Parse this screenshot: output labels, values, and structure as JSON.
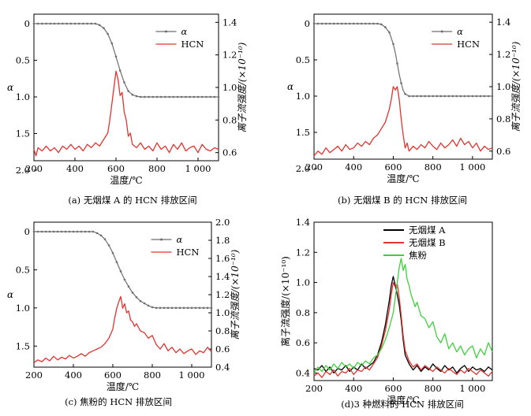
{
  "colors": {
    "alpha": "#6e6e6e",
    "hcn": "#e0342f",
    "coalA": "#000000",
    "coalB": "#e0342f",
    "coke": "#3ed23a"
  },
  "chart_data": [
    {
      "id": "a",
      "type": "line",
      "caption": "(a) 无烟煤 A 的 HCN 排放区间",
      "xlabel": "温度/℃",
      "ylabel_left": "α",
      "ylabel_right": "离子流强度/(×10⁻¹⁰)",
      "xlim": [
        200,
        1100
      ],
      "xticks": [
        "200",
        "400",
        "600",
        "800",
        "1 000"
      ],
      "xtick_values": [
        200,
        400,
        600,
        800,
        1000
      ],
      "ylim_left": [
        2.0,
        0
      ],
      "yticks_left": [
        "0",
        "0.5",
        "1.0",
        "1.5",
        "2.0"
      ],
      "ytick_left_values": [
        0,
        0.5,
        1.0,
        1.5,
        2.0
      ],
      "ylim_right": [
        0.55,
        1.45
      ],
      "yticks_right": [
        "0.6",
        "0.8",
        "1.0",
        "1.2",
        "1.4"
      ],
      "ytick_right_values": [
        0.6,
        0.8,
        1.0,
        1.2,
        1.4
      ],
      "legend": [
        "α",
        "HCN"
      ],
      "series": [
        {
          "name": "α",
          "axis": "left",
          "marker": true,
          "x": [
            200,
            500,
            520,
            540,
            560,
            580,
            600,
            620,
            640,
            660,
            680,
            700,
            720,
            760,
            800,
            900,
            1000,
            1100
          ],
          "y": [
            0,
            0,
            0.02,
            0.06,
            0.14,
            0.27,
            0.45,
            0.64,
            0.8,
            0.92,
            0.97,
            0.99,
            1.0,
            1.0,
            1.0,
            1.0,
            1.0,
            1.0
          ]
        },
        {
          "name": "HCN",
          "axis": "right",
          "x": [
            200,
            210,
            220,
            240,
            260,
            280,
            300,
            320,
            340,
            360,
            380,
            400,
            420,
            440,
            460,
            480,
            500,
            520,
            540,
            560,
            570,
            580,
            590,
            600,
            610,
            620,
            630,
            640,
            650,
            660,
            670,
            680,
            700,
            720,
            740,
            760,
            780,
            800,
            820,
            840,
            860,
            880,
            900,
            920,
            940,
            960,
            980,
            1000,
            1020,
            1040,
            1060,
            1080,
            1100
          ],
          "y": [
            0.62,
            0.58,
            0.63,
            0.61,
            0.64,
            0.61,
            0.63,
            0.6,
            0.64,
            0.62,
            0.65,
            0.62,
            0.64,
            0.61,
            0.65,
            0.63,
            0.66,
            0.64,
            0.68,
            0.72,
            0.8,
            0.9,
            1.0,
            1.1,
            1.05,
            0.95,
            0.97,
            0.85,
            0.8,
            0.7,
            0.72,
            0.65,
            0.63,
            0.66,
            0.62,
            0.64,
            0.61,
            0.66,
            0.62,
            0.64,
            0.6,
            0.65,
            0.62,
            0.66,
            0.61,
            0.63,
            0.64,
            0.6,
            0.65,
            0.62,
            0.61,
            0.63,
            0.62
          ]
        }
      ]
    },
    {
      "id": "b",
      "type": "line",
      "caption": "(b) 无烟煤 B 的 HCN 排放区间",
      "xlabel": "温度/℃",
      "ylabel_left": "α",
      "ylabel_right": "离子流强度/(×10⁻¹⁰)",
      "xlim": [
        200,
        1100
      ],
      "xticks": [
        "200",
        "400",
        "600",
        "800",
        "1 000"
      ],
      "xtick_values": [
        200,
        400,
        600,
        800,
        1000
      ],
      "ylim_left": [
        2.0,
        0
      ],
      "yticks_left": [
        "0",
        "0.5",
        "1.0",
        "1.5",
        "2.0"
      ],
      "ytick_left_values": [
        0,
        0.5,
        1.0,
        1.5,
        2.0
      ],
      "ylim_right": [
        0.55,
        1.45
      ],
      "yticks_right": [
        "0.6",
        "0.8",
        "1.0",
        "1.2",
        "1.4"
      ],
      "ytick_right_values": [
        0.6,
        0.8,
        1.0,
        1.2,
        1.4
      ],
      "legend": [
        "α",
        "HCN"
      ],
      "series": [
        {
          "name": "α",
          "axis": "left",
          "marker": true,
          "x": [
            200,
            520,
            540,
            560,
            580,
            600,
            610,
            620,
            630,
            640,
            650,
            660,
            680,
            700,
            760,
            800,
            900,
            1000,
            1100
          ],
          "y": [
            0,
            0,
            0.01,
            0.05,
            0.12,
            0.28,
            0.4,
            0.55,
            0.7,
            0.82,
            0.92,
            0.97,
            1.0,
            1.0,
            1.0,
            1.0,
            1.0,
            1.0,
            1.0
          ]
        },
        {
          "name": "HCN",
          "axis": "right",
          "x": [
            200,
            220,
            240,
            260,
            280,
            300,
            320,
            340,
            360,
            380,
            400,
            420,
            440,
            460,
            480,
            500,
            520,
            540,
            560,
            580,
            590,
            600,
            610,
            620,
            630,
            640,
            650,
            660,
            670,
            680,
            700,
            720,
            740,
            760,
            780,
            800,
            820,
            840,
            860,
            880,
            900,
            920,
            940,
            960,
            980,
            1000,
            1020,
            1040,
            1060,
            1080,
            1100
          ],
          "y": [
            0.57,
            0.6,
            0.58,
            0.62,
            0.59,
            0.61,
            0.63,
            0.6,
            0.64,
            0.61,
            0.62,
            0.65,
            0.63,
            0.66,
            0.64,
            0.68,
            0.7,
            0.74,
            0.78,
            0.86,
            0.92,
            1.0,
            0.98,
            1.0,
            0.92,
            0.8,
            0.7,
            0.62,
            0.65,
            0.6,
            0.63,
            0.61,
            0.64,
            0.62,
            0.66,
            0.63,
            0.61,
            0.65,
            0.62,
            0.64,
            0.67,
            0.63,
            0.68,
            0.64,
            0.66,
            0.62,
            0.65,
            0.6,
            0.63,
            0.61,
            0.62
          ]
        }
      ]
    },
    {
      "id": "c",
      "type": "line",
      "caption": "(c) 焦粉的 HCN 排放区间",
      "xlabel": "温度/℃",
      "ylabel_left": "α",
      "ylabel_right": "离子流强度/(×10⁻¹⁰)",
      "xlim": [
        200,
        1100
      ],
      "xticks": [
        "200",
        "400",
        "600",
        "800",
        "1 000"
      ],
      "xtick_values": [
        200,
        400,
        600,
        800,
        1000
      ],
      "ylim_left": [
        1.9,
        0
      ],
      "yticks_left": [
        "0",
        "0.5",
        "1.0",
        "1.5"
      ],
      "ytick_left_values": [
        0,
        0.5,
        1.0,
        1.5
      ],
      "ylim_right": [
        0.4,
        2.0
      ],
      "yticks_right": [
        "0.4",
        "0.6",
        "0.8",
        "1.0",
        "1.2",
        "1.4",
        "1.6",
        "1.8",
        "2.0"
      ],
      "ytick_right_values": [
        0.4,
        0.6,
        0.8,
        1.0,
        1.2,
        1.4,
        1.6,
        1.8,
        2.0
      ],
      "legend": [
        "α",
        "HCN"
      ],
      "series": [
        {
          "name": "α",
          "axis": "left",
          "marker": true,
          "x": [
            200,
            500,
            520,
            540,
            560,
            580,
            600,
            620,
            640,
            660,
            680,
            700,
            720,
            740,
            760,
            780,
            800,
            820,
            840,
            860,
            900,
            1000,
            1100
          ],
          "y": [
            0,
            0,
            0.02,
            0.05,
            0.1,
            0.18,
            0.28,
            0.4,
            0.52,
            0.63,
            0.72,
            0.8,
            0.86,
            0.91,
            0.94,
            0.97,
            0.99,
            1.0,
            1.0,
            1.0,
            1.0,
            1.0,
            1.0
          ]
        },
        {
          "name": "HCN",
          "axis": "right",
          "x": [
            200,
            220,
            240,
            260,
            280,
            300,
            320,
            340,
            360,
            380,
            400,
            420,
            440,
            460,
            480,
            500,
            520,
            540,
            560,
            580,
            600,
            610,
            620,
            630,
            640,
            650,
            660,
            670,
            680,
            690,
            700,
            710,
            720,
            740,
            760,
            780,
            800,
            820,
            840,
            860,
            880,
            900,
            920,
            940,
            960,
            980,
            1000,
            1020,
            1040,
            1060,
            1080,
            1100
          ],
          "y": [
            0.45,
            0.48,
            0.46,
            0.5,
            0.47,
            0.52,
            0.48,
            0.51,
            0.49,
            0.53,
            0.5,
            0.52,
            0.55,
            0.52,
            0.56,
            0.58,
            0.6,
            0.62,
            0.66,
            0.72,
            0.82,
            0.95,
            1.05,
            1.12,
            1.18,
            1.05,
            1.1,
            1.0,
            1.02,
            0.92,
            0.9,
            0.85,
            0.88,
            0.8,
            0.78,
            0.72,
            0.75,
            0.65,
            0.6,
            0.66,
            0.58,
            0.62,
            0.56,
            0.6,
            0.55,
            0.58,
            0.6,
            0.54,
            0.58,
            0.56,
            0.62,
            0.57
          ]
        }
      ]
    },
    {
      "id": "d",
      "type": "line",
      "caption": "(d)3 种燃料的 HCN 排放区间",
      "xlabel": "温度/℃",
      "ylabel_left": "离子流强度/(×10⁻¹⁰)",
      "xlim": [
        200,
        1100
      ],
      "xticks": [
        "200",
        "400",
        "600",
        "800",
        "1 000"
      ],
      "xtick_values": [
        200,
        400,
        600,
        800,
        1000
      ],
      "ylim_left": [
        0.35,
        1.4
      ],
      "yticks_left": [
        "0.4",
        "0.6",
        "0.8",
        "1.0",
        "1.2",
        "1.4"
      ],
      "ytick_left_values": [
        0.4,
        0.6,
        0.8,
        1.0,
        1.2,
        1.4
      ],
      "legend": [
        "无烟煤 A",
        "无烟煤 B",
        "焦粉"
      ],
      "series": [
        {
          "name": "无烟煤 A",
          "axis": "left",
          "x": [
            200,
            220,
            240,
            260,
            280,
            300,
            320,
            340,
            360,
            380,
            400,
            420,
            440,
            460,
            480,
            500,
            520,
            540,
            560,
            580,
            590,
            600,
            610,
            620,
            630,
            640,
            650,
            660,
            680,
            700,
            720,
            740,
            760,
            780,
            800,
            820,
            840,
            860,
            880,
            900,
            920,
            940,
            960,
            980,
            1000,
            1020,
            1040,
            1060,
            1080,
            1100
          ],
          "y": [
            0.43,
            0.42,
            0.45,
            0.41,
            0.44,
            0.4,
            0.43,
            0.42,
            0.45,
            0.41,
            0.44,
            0.42,
            0.46,
            0.43,
            0.45,
            0.47,
            0.52,
            0.6,
            0.72,
            0.88,
            0.98,
            1.04,
            0.98,
            0.92,
            0.85,
            0.75,
            0.62,
            0.52,
            0.46,
            0.42,
            0.45,
            0.41,
            0.44,
            0.42,
            0.46,
            0.43,
            0.41,
            0.45,
            0.42,
            0.44,
            0.4,
            0.43,
            0.45,
            0.41,
            0.44,
            0.42,
            0.43,
            0.41,
            0.44,
            0.42
          ]
        },
        {
          "name": "无烟煤 B",
          "axis": "left",
          "x": [
            200,
            220,
            240,
            260,
            280,
            300,
            320,
            340,
            360,
            380,
            400,
            420,
            440,
            460,
            480,
            500,
            520,
            540,
            560,
            580,
            590,
            600,
            610,
            620,
            630,
            640,
            650,
            660,
            680,
            700,
            720,
            740,
            760,
            780,
            800,
            820,
            840,
            860,
            880,
            900,
            920,
            940,
            960,
            980,
            1000,
            1020,
            1040,
            1060,
            1080,
            1100
          ],
          "y": [
            0.38,
            0.4,
            0.37,
            0.41,
            0.39,
            0.42,
            0.38,
            0.41,
            0.4,
            0.43,
            0.39,
            0.42,
            0.41,
            0.44,
            0.42,
            0.46,
            0.5,
            0.58,
            0.68,
            0.82,
            0.92,
            1.0,
            0.97,
            0.99,
            0.9,
            0.78,
            0.65,
            0.55,
            0.48,
            0.44,
            0.46,
            0.42,
            0.45,
            0.43,
            0.41,
            0.44,
            0.42,
            0.4,
            0.43,
            0.41,
            0.39,
            0.42,
            0.4,
            0.43,
            0.41,
            0.39,
            0.42,
            0.4,
            0.38,
            0.41
          ]
        },
        {
          "name": "焦粉",
          "axis": "left",
          "x": [
            200,
            220,
            240,
            260,
            280,
            300,
            320,
            340,
            360,
            380,
            400,
            420,
            440,
            460,
            480,
            500,
            520,
            540,
            560,
            580,
            600,
            610,
            620,
            630,
            640,
            650,
            660,
            670,
            680,
            690,
            700,
            710,
            720,
            740,
            760,
            780,
            800,
            820,
            840,
            860,
            880,
            900,
            920,
            940,
            960,
            980,
            1000,
            1020,
            1040,
            1060,
            1080,
            1100
          ],
          "y": [
            0.4,
            0.44,
            0.41,
            0.45,
            0.42,
            0.46,
            0.43,
            0.47,
            0.44,
            0.46,
            0.43,
            0.47,
            0.45,
            0.48,
            0.46,
            0.5,
            0.52,
            0.56,
            0.62,
            0.7,
            0.8,
            0.9,
            1.0,
            1.1,
            1.16,
            1.08,
            1.12,
            1.02,
            0.98,
            0.92,
            0.88,
            0.84,
            0.87,
            0.78,
            0.76,
            0.7,
            0.74,
            0.64,
            0.6,
            0.66,
            0.56,
            0.6,
            0.54,
            0.58,
            0.52,
            0.56,
            0.58,
            0.5,
            0.56,
            0.52,
            0.6,
            0.54
          ]
        }
      ]
    }
  ]
}
